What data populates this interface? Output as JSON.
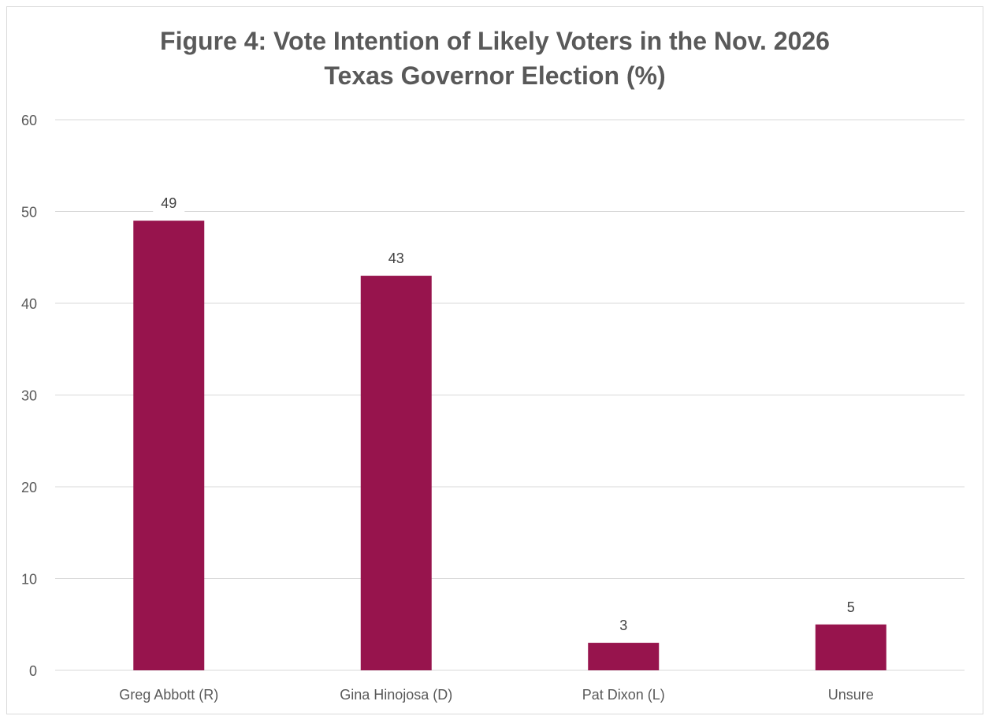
{
  "chart_data": {
    "type": "bar",
    "title_lines": [
      "Figure 4: Vote Intention of Likely Voters in the Nov. 2026",
      "Texas Governor Election (%)"
    ],
    "categories": [
      "Greg Abbott (R)",
      "Gina Hinojosa (D)",
      "Pat Dixon (L)",
      "Unsure"
    ],
    "values": [
      49,
      43,
      3,
      5
    ],
    "ylim": [
      0,
      60
    ],
    "yticks": [
      0,
      10,
      20,
      30,
      40,
      50,
      60
    ],
    "grid": true,
    "legend": "none",
    "bar_color": "#97144d",
    "data_labels": true
  }
}
